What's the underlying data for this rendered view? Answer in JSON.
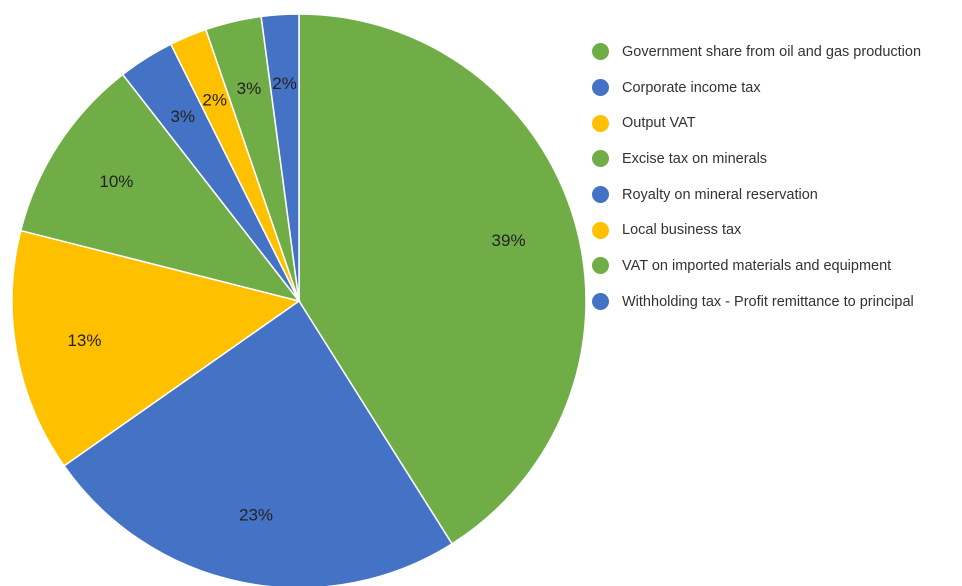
{
  "chart_data": {
    "type": "pie",
    "legend_position": "right",
    "slices": [
      {
        "name": "Government share from oil and gas production",
        "value": 39,
        "label": "39%",
        "color": "#70AD47"
      },
      {
        "name": "Corporate income tax",
        "value": 23,
        "label": "23%",
        "color": "#4472C4"
      },
      {
        "name": "Output VAT",
        "value": 13,
        "label": "13%",
        "color": "#FFC000"
      },
      {
        "name": "Excise tax on minerals",
        "value": 10,
        "label": "10%",
        "color": "#70AD47"
      },
      {
        "name": "Royalty on mineral reservation",
        "value": 3,
        "label": "3%",
        "color": "#4472C4"
      },
      {
        "name": "Local business tax",
        "value": 2,
        "label": "2%",
        "color": "#FFC000"
      },
      {
        "name": "VAT on imported materials and equipment",
        "value": 3,
        "label": "3%",
        "color": "#70AD47"
      },
      {
        "name": "Withholding tax - Profit remittance to principal",
        "value": 2,
        "label": "2%",
        "color": "#4472C4"
      }
    ]
  }
}
